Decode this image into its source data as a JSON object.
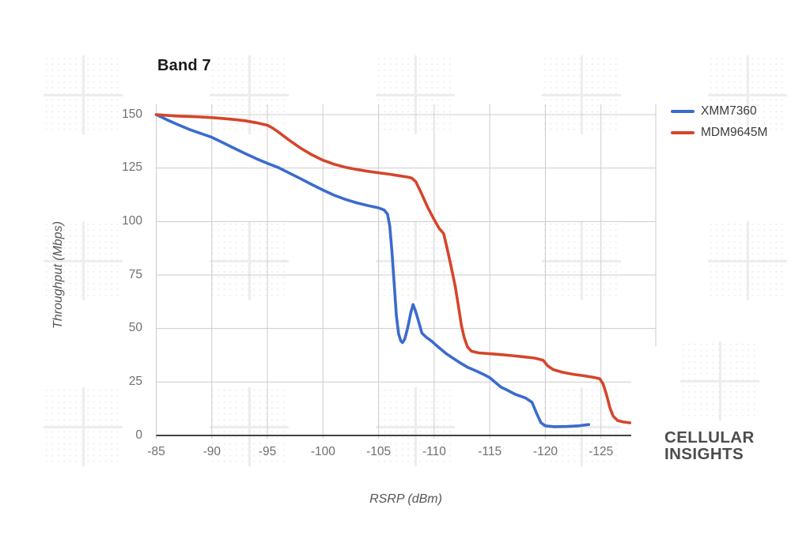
{
  "chart_data": {
    "type": "line",
    "title": "Band 7",
    "xlabel": "RSRP (dBm)",
    "ylabel": "Throughput (Mbps)",
    "xlim": [
      -85,
      -130
    ],
    "ylim": [
      0,
      150
    ],
    "grid": true,
    "legend_position": "right-top",
    "x_ticks": [
      -85,
      -90,
      -95,
      -100,
      -105,
      -110,
      -115,
      -120,
      -125
    ],
    "y_ticks": [
      0,
      25,
      50,
      75,
      100,
      125,
      150
    ],
    "colors": {
      "grid": "#cccccc",
      "axis_line": "#424242",
      "tick_text": "#6f6f6f",
      "axis_title_text": "#555555",
      "title_text": "#1a1a1a",
      "legend_text": "#3c3c3c",
      "logo_text": "#4c4c4c"
    },
    "series": [
      {
        "name": "XMM7360",
        "color": "#3b6bce",
        "points": [
          [
            -85,
            150
          ],
          [
            -86,
            147.5
          ],
          [
            -87,
            145.2
          ],
          [
            -88,
            143
          ],
          [
            -89,
            141.2
          ],
          [
            -90,
            139.4
          ],
          [
            -91,
            136.9
          ],
          [
            -92,
            134.3
          ],
          [
            -93,
            131.8
          ],
          [
            -94,
            129.4
          ],
          [
            -95,
            127.2
          ],
          [
            -96,
            125.2
          ],
          [
            -97,
            122.6
          ],
          [
            -98,
            120
          ],
          [
            -99,
            117.3
          ],
          [
            -100,
            114.7
          ],
          [
            -101,
            112.3
          ],
          [
            -102,
            110.4
          ],
          [
            -103,
            108.8
          ],
          [
            -104,
            107.5
          ],
          [
            -105,
            106.4
          ],
          [
            -105.5,
            105.4
          ],
          [
            -105.8,
            103.5
          ],
          [
            -106,
            98
          ],
          [
            -106.2,
            86
          ],
          [
            -106.4,
            71
          ],
          [
            -106.6,
            56
          ],
          [
            -106.8,
            47.5
          ],
          [
            -107,
            44.2
          ],
          [
            -107.15,
            43.4
          ],
          [
            -107.35,
            45
          ],
          [
            -107.6,
            50
          ],
          [
            -107.9,
            57.5
          ],
          [
            -108.1,
            61.2
          ],
          [
            -108.3,
            58.5
          ],
          [
            -108.6,
            53.3
          ],
          [
            -108.9,
            47.8
          ],
          [
            -109.3,
            45.9
          ],
          [
            -109.8,
            44
          ],
          [
            -110,
            43
          ],
          [
            -110.5,
            40.8
          ],
          [
            -111.1,
            38.2
          ],
          [
            -112.2,
            34.4
          ],
          [
            -113,
            31.9
          ],
          [
            -113.8,
            30.1
          ],
          [
            -114.5,
            28.4
          ],
          [
            -115,
            27
          ],
          [
            -115.5,
            24.8
          ],
          [
            -116,
            22.6
          ],
          [
            -116.5,
            21.4
          ],
          [
            -117.3,
            19.2
          ],
          [
            -118.2,
            17.6
          ],
          [
            -118.8,
            15.5
          ],
          [
            -119.2,
            10.5
          ],
          [
            -119.6,
            6
          ],
          [
            -120,
            4.5
          ],
          [
            -120.8,
            4.1
          ],
          [
            -122,
            4.2
          ],
          [
            -123,
            4.5
          ],
          [
            -123.9,
            5.1
          ]
        ]
      },
      {
        "name": "MDM9645M",
        "color": "#d5452b",
        "points": [
          [
            -85,
            150
          ],
          [
            -86,
            149.6
          ],
          [
            -87,
            149.3
          ],
          [
            -88,
            149.1
          ],
          [
            -89,
            148.9
          ],
          [
            -90,
            148.6
          ],
          [
            -91,
            148.2
          ],
          [
            -92,
            147.7
          ],
          [
            -93,
            147.1
          ],
          [
            -94,
            146.2
          ],
          [
            -95,
            145
          ],
          [
            -95.5,
            143.6
          ],
          [
            -96,
            141.8
          ],
          [
            -97,
            137.9
          ],
          [
            -98,
            134.3
          ],
          [
            -99,
            131.2
          ],
          [
            -100,
            128.7
          ],
          [
            -101,
            126.8
          ],
          [
            -102,
            125.4
          ],
          [
            -103,
            124.4
          ],
          [
            -104,
            123.5
          ],
          [
            -105,
            122.8
          ],
          [
            -106,
            122.1
          ],
          [
            -107,
            121.3
          ],
          [
            -107.6,
            120.8
          ],
          [
            -108,
            120.3
          ],
          [
            -108.35,
            118.6
          ],
          [
            -108.8,
            113.8
          ],
          [
            -109.4,
            106.8
          ],
          [
            -110,
            100.9
          ],
          [
            -110.45,
            96.8
          ],
          [
            -110.85,
            94.4
          ],
          [
            -111.1,
            89
          ],
          [
            -111.5,
            79.5
          ],
          [
            -111.9,
            69.5
          ],
          [
            -112.15,
            61.5
          ],
          [
            -112.45,
            51.5
          ],
          [
            -112.7,
            45.8
          ],
          [
            -113,
            41.3
          ],
          [
            -113.35,
            39.4
          ],
          [
            -114,
            38.6
          ],
          [
            -115,
            38.2
          ],
          [
            -116,
            37.8
          ],
          [
            -117,
            37.3
          ],
          [
            -118,
            36.8
          ],
          [
            -119,
            36.2
          ],
          [
            -119.8,
            35.2
          ],
          [
            -120.2,
            32.6
          ],
          [
            -120.7,
            30.8
          ],
          [
            -121.5,
            29.6
          ],
          [
            -122.5,
            28.6
          ],
          [
            -123.5,
            27.9
          ],
          [
            -124.4,
            27.1
          ],
          [
            -124.9,
            26.5
          ],
          [
            -125.2,
            24
          ],
          [
            -125.5,
            19
          ],
          [
            -125.8,
            13
          ],
          [
            -126.1,
            9
          ],
          [
            -126.5,
            7
          ],
          [
            -127,
            6.3
          ],
          [
            -127.6,
            5.9
          ]
        ]
      }
    ]
  },
  "logo": {
    "line1": "CELLULAR",
    "line2": "INSIGHTS"
  }
}
